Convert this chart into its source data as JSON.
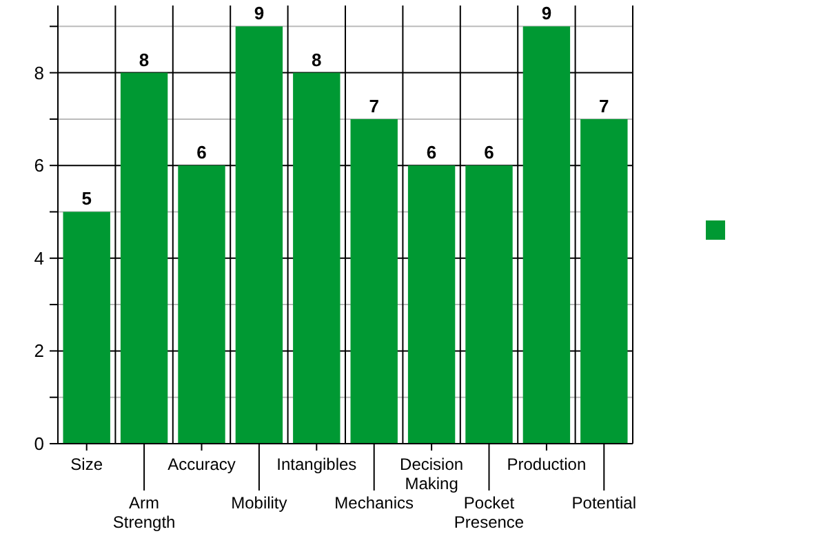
{
  "chart_data": {
    "type": "bar",
    "categories": [
      "Size",
      "Arm Strength",
      "Accuracy",
      "Mobility",
      "Intangibles",
      "Mechanics",
      "Decision Making",
      "Pocket Presence",
      "Production",
      "Potential"
    ],
    "series": [
      {
        "color": "#009933",
        "values": [
          5,
          8,
          6,
          9,
          8,
          7,
          6,
          6,
          9,
          7
        ]
      }
    ],
    "ylim": [
      0,
      9.45
    ],
    "yticks": [
      0,
      {
        "value": 1,
        "label": null
      },
      2,
      {
        "value": 3,
        "label": null
      },
      4,
      {
        "value": 5,
        "label": null
      },
      6,
      {
        "value": 7,
        "label": null
      },
      8,
      {
        "value": 9,
        "label": null
      }
    ],
    "grid": true,
    "data_labels": true
  }
}
